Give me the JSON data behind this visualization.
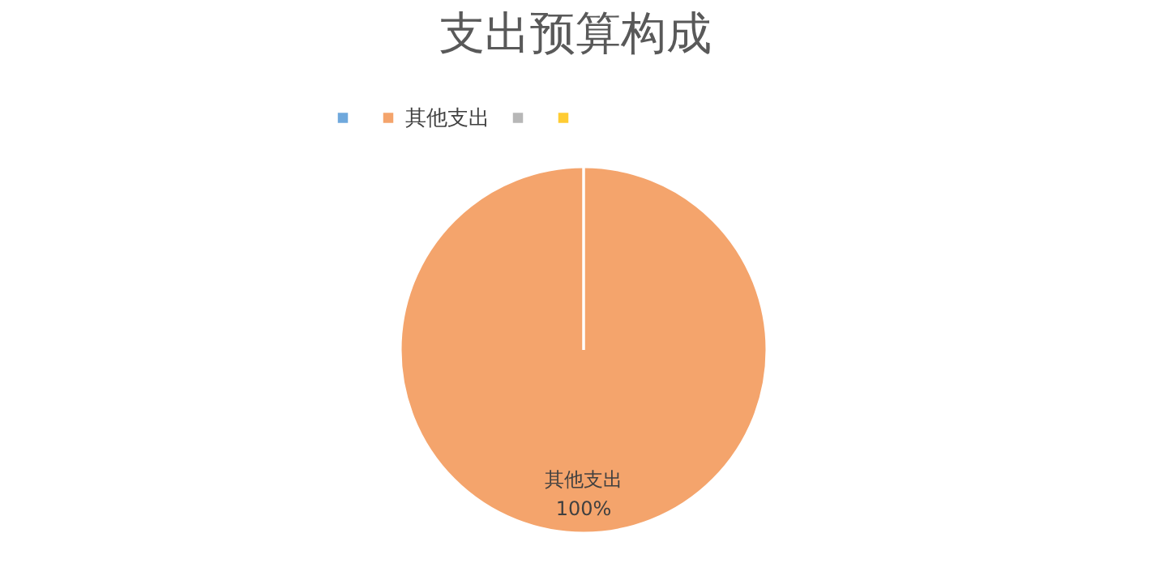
{
  "chart_data": {
    "type": "pie",
    "title": "支出预算构成",
    "categories": [
      null,
      "其他支出",
      null,
      null
    ],
    "values": [
      0,
      100,
      0,
      0
    ],
    "colors": [
      "#6fa8dc",
      "#f4a46c",
      "#b7b7b7",
      "#ffcc33"
    ],
    "value_labels": [
      null,
      "100%",
      null,
      null
    ],
    "legend": "top"
  }
}
